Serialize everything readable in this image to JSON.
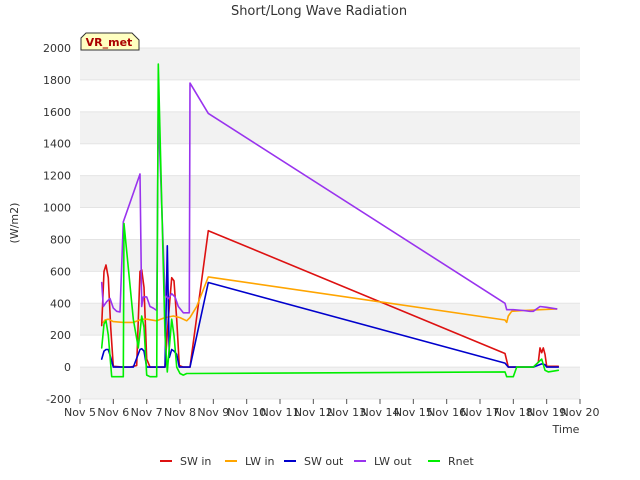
{
  "chart_data": {
    "type": "line",
    "title": "Short/Long Wave Radiation",
    "xlabel": "Time",
    "ylabel": "(W/m2)",
    "badge": "VR_met",
    "xlim": [
      5,
      20
    ],
    "ylim": [
      -200,
      2000
    ],
    "x_ticks": [
      {
        "v": 5,
        "label": "Nov 5"
      },
      {
        "v": 6,
        "label": "Nov 6"
      },
      {
        "v": 7,
        "label": "Nov 7"
      },
      {
        "v": 8,
        "label": "Nov 8"
      },
      {
        "v": 9,
        "label": "Nov 9"
      },
      {
        "v": 10,
        "label": "Nov 10"
      },
      {
        "v": 11,
        "label": "Nov 11"
      },
      {
        "v": 12,
        "label": "Nov 12"
      },
      {
        "v": 13,
        "label": "Nov 13"
      },
      {
        "v": 14,
        "label": "Nov 14"
      },
      {
        "v": 15,
        "label": "Nov 15"
      },
      {
        "v": 16,
        "label": "Nov 16"
      },
      {
        "v": 17,
        "label": "Nov 17"
      },
      {
        "v": 18,
        "label": "Nov 18"
      },
      {
        "v": 19,
        "label": "Nov 19"
      },
      {
        "v": 20,
        "label": "Nov 20"
      }
    ],
    "y_ticks": [
      -200,
      0,
      200,
      400,
      600,
      800,
      1000,
      1200,
      1400,
      1600,
      1800,
      2000
    ],
    "series": [
      {
        "name": "SW in",
        "color": "#dd1111",
        "points": [
          [
            5.65,
            260
          ],
          [
            5.72,
            600
          ],
          [
            5.78,
            640
          ],
          [
            5.85,
            560
          ],
          [
            5.92,
            250
          ],
          [
            6.0,
            5
          ],
          [
            6.3,
            0
          ],
          [
            6.5,
            0
          ],
          [
            6.7,
            10
          ],
          [
            6.8,
            600
          ],
          [
            6.85,
            610
          ],
          [
            6.92,
            500
          ],
          [
            7.0,
            50
          ],
          [
            7.1,
            0
          ],
          [
            7.3,
            0
          ],
          [
            7.55,
            0
          ],
          [
            7.65,
            300
          ],
          [
            7.75,
            560
          ],
          [
            7.82,
            540
          ],
          [
            7.9,
            300
          ],
          [
            7.98,
            10
          ],
          [
            8.1,
            0
          ],
          [
            8.3,
            0
          ],
          [
            8.85,
            855
          ],
          [
            17.75,
            85
          ],
          [
            17.85,
            0
          ],
          [
            18.2,
            0
          ],
          [
            18.6,
            0
          ],
          [
            18.75,
            30
          ],
          [
            18.8,
            120
          ],
          [
            18.85,
            90
          ],
          [
            18.9,
            120
          ],
          [
            18.95,
            80
          ],
          [
            19.0,
            5
          ],
          [
            19.35,
            5
          ]
        ]
      },
      {
        "name": "LW in",
        "color": "#ffa500",
        "points": [
          [
            5.7,
            280
          ],
          [
            5.75,
            295
          ],
          [
            5.85,
            300
          ],
          [
            6.0,
            285
          ],
          [
            6.3,
            280
          ],
          [
            6.6,
            280
          ],
          [
            6.85,
            300
          ],
          [
            7.0,
            300
          ],
          [
            7.3,
            290
          ],
          [
            7.55,
            310
          ],
          [
            7.8,
            320
          ],
          [
            8.0,
            310
          ],
          [
            8.2,
            290
          ],
          [
            8.3,
            310
          ],
          [
            8.5,
            380
          ],
          [
            8.85,
            565
          ],
          [
            17.75,
            295
          ],
          [
            17.8,
            280
          ],
          [
            17.85,
            320
          ],
          [
            17.95,
            350
          ],
          [
            18.3,
            355
          ],
          [
            18.8,
            360
          ],
          [
            19.3,
            365
          ]
        ]
      },
      {
        "name": "SW out",
        "color": "#0000cc",
        "points": [
          [
            5.65,
            50
          ],
          [
            5.72,
            100
          ],
          [
            5.78,
            110
          ],
          [
            5.85,
            110
          ],
          [
            5.92,
            60
          ],
          [
            6.0,
            0
          ],
          [
            6.3,
            0
          ],
          [
            6.6,
            0
          ],
          [
            6.8,
            110
          ],
          [
            6.85,
            115
          ],
          [
            6.92,
            100
          ],
          [
            7.0,
            0
          ],
          [
            7.3,
            0
          ],
          [
            7.55,
            0
          ],
          [
            7.62,
            760
          ],
          [
            7.68,
            60
          ],
          [
            7.75,
            110
          ],
          [
            7.82,
            100
          ],
          [
            7.9,
            80
          ],
          [
            7.98,
            0
          ],
          [
            8.3,
            0
          ],
          [
            8.85,
            530
          ],
          [
            17.75,
            25
          ],
          [
            17.85,
            0
          ],
          [
            18.6,
            0
          ],
          [
            18.85,
            20
          ],
          [
            18.95,
            15
          ],
          [
            19.0,
            0
          ],
          [
            19.35,
            0
          ]
        ]
      },
      {
        "name": "LW out",
        "color": "#9933ee",
        "points": [
          [
            5.65,
            530
          ],
          [
            5.7,
            380
          ],
          [
            5.8,
            410
          ],
          [
            5.9,
            430
          ],
          [
            6.0,
            370
          ],
          [
            6.1,
            350
          ],
          [
            6.2,
            345
          ],
          [
            6.3,
            910
          ],
          [
            6.8,
            1210
          ],
          [
            6.85,
            380
          ],
          [
            6.9,
            440
          ],
          [
            7.0,
            440
          ],
          [
            7.1,
            380
          ],
          [
            7.2,
            370
          ],
          [
            7.3,
            355
          ],
          [
            7.35,
            1600
          ],
          [
            7.55,
            450
          ],
          [
            7.65,
            430
          ],
          [
            7.75,
            460
          ],
          [
            7.85,
            440
          ],
          [
            7.95,
            380
          ],
          [
            8.1,
            340
          ],
          [
            8.28,
            340
          ],
          [
            8.3,
            1780
          ],
          [
            8.85,
            1590
          ],
          [
            17.75,
            400
          ],
          [
            17.8,
            360
          ],
          [
            18.0,
            360
          ],
          [
            18.3,
            355
          ],
          [
            18.5,
            350
          ],
          [
            18.6,
            350
          ],
          [
            18.8,
            380
          ],
          [
            19.0,
            375
          ],
          [
            19.3,
            365
          ]
        ]
      },
      {
        "name": "Rnet",
        "color": "#00ee00",
        "points": [
          [
            5.65,
            120
          ],
          [
            5.72,
            270
          ],
          [
            5.78,
            290
          ],
          [
            5.85,
            200
          ],
          [
            5.95,
            -60
          ],
          [
            6.0,
            -60
          ],
          [
            6.3,
            -60
          ],
          [
            6.32,
            900
          ],
          [
            6.6,
            300
          ],
          [
            6.75,
            120
          ],
          [
            6.85,
            320
          ],
          [
            6.92,
            250
          ],
          [
            7.0,
            -50
          ],
          [
            7.1,
            -60
          ],
          [
            7.3,
            -60
          ],
          [
            7.35,
            1900
          ],
          [
            7.55,
            200
          ],
          [
            7.62,
            -30
          ],
          [
            7.75,
            300
          ],
          [
            7.82,
            200
          ],
          [
            7.9,
            0
          ],
          [
            8.0,
            -40
          ],
          [
            8.1,
            -50
          ],
          [
            8.2,
            -40
          ],
          [
            8.3,
            -40
          ],
          [
            17.75,
            -30
          ],
          [
            17.8,
            -60
          ],
          [
            18.0,
            -60
          ],
          [
            18.1,
            0
          ],
          [
            18.6,
            0
          ],
          [
            18.75,
            30
          ],
          [
            18.85,
            50
          ],
          [
            18.95,
            -20
          ],
          [
            19.05,
            -30
          ],
          [
            19.35,
            -20
          ]
        ]
      }
    ]
  }
}
